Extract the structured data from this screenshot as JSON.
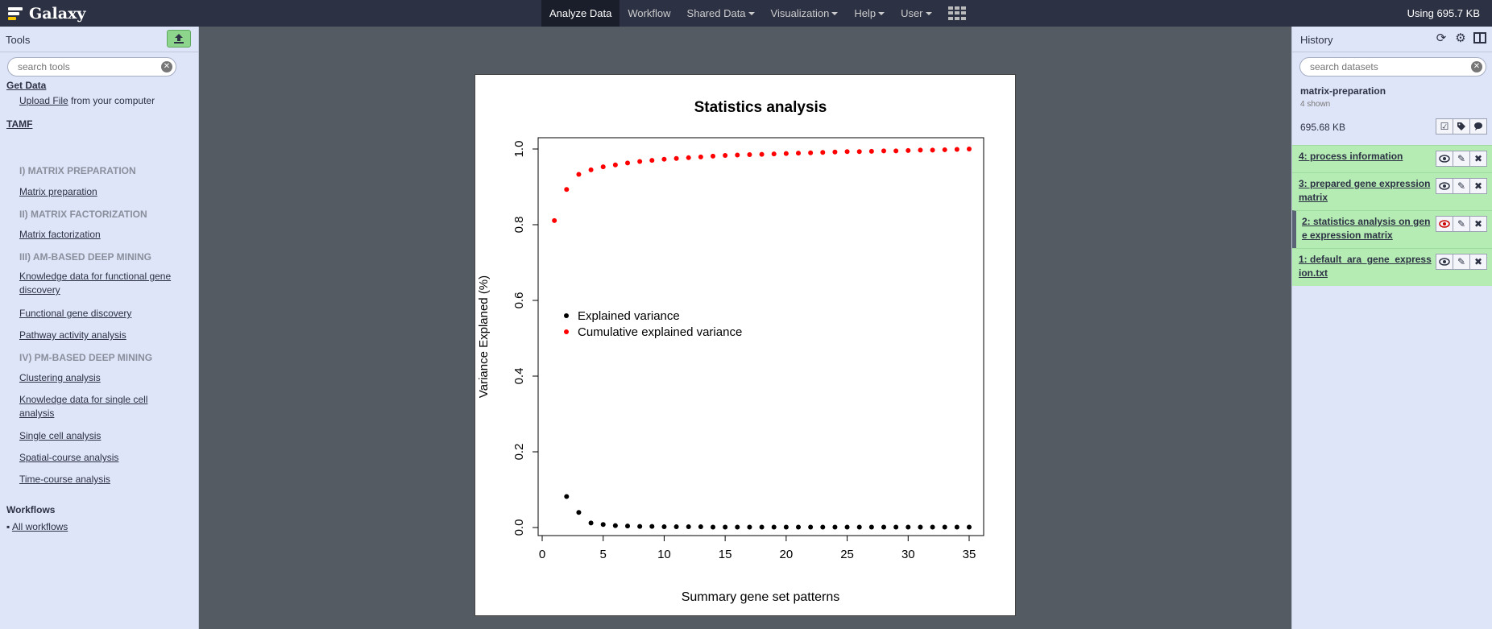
{
  "masthead": {
    "brand": "Galaxy",
    "nav": [
      {
        "label": "Analyze Data",
        "active": true,
        "caret": false
      },
      {
        "label": "Workflow",
        "active": false,
        "caret": false
      },
      {
        "label": "Shared Data",
        "active": false,
        "caret": true
      },
      {
        "label": "Visualization",
        "active": false,
        "caret": true
      },
      {
        "label": "Help",
        "active": false,
        "caret": true
      },
      {
        "label": "User",
        "active": false,
        "caret": true
      }
    ],
    "apps_icon": "grid-icon",
    "quota": "Using 695.7 KB"
  },
  "tools": {
    "title": "Tools",
    "upload_icon": "upload-icon",
    "search_placeholder": "search tools",
    "get_data": "Get Data",
    "upload_link": "Upload File",
    "upload_suffix": " from your computer",
    "tamf": "TAMF",
    "items": [
      {
        "kind": "cat",
        "label": "I) MATRIX PREPARATION"
      },
      {
        "kind": "tool",
        "label": "Matrix preparation"
      },
      {
        "kind": "cat",
        "label": "II) MATRIX FACTORIZATION"
      },
      {
        "kind": "tool",
        "label": "Matrix factorization"
      },
      {
        "kind": "cat",
        "label": "III) AM-BASED DEEP MINING"
      },
      {
        "kind": "tool",
        "label": "Knowledge data for functional gene discovery"
      },
      {
        "kind": "tool",
        "label": "Functional gene discovery"
      },
      {
        "kind": "tool",
        "label": "Pathway activity analysis"
      },
      {
        "kind": "cat",
        "label": "IV) PM-BASED DEEP MINING"
      },
      {
        "kind": "tool",
        "label": "Clustering analysis"
      },
      {
        "kind": "tool",
        "label": "Knowledge data for single cell analysis"
      },
      {
        "kind": "tool",
        "label": "Single cell analysis"
      },
      {
        "kind": "tool",
        "label": "Spatial-course analysis"
      },
      {
        "kind": "tool",
        "label": "Time-course analysis"
      }
    ],
    "workflows_title": "Workflows",
    "all_workflows": "All workflows"
  },
  "history": {
    "title": "History",
    "icons": [
      "refresh-icon",
      "gear-icon",
      "columns-icon"
    ],
    "search_placeholder": "search datasets",
    "name": "matrix-preparation",
    "shown": "4 shown",
    "size": "695.68 KB",
    "datasets": [
      {
        "title": "4: process information",
        "selected": false,
        "eye_red": false
      },
      {
        "title": "3: prepared gene expression matrix",
        "selected": false,
        "eye_red": false
      },
      {
        "title": "2: statistics analysis on gene expression matrix",
        "selected": true,
        "eye_red": true
      },
      {
        "title": "1: default_ara_gene_expression.txt",
        "selected": false,
        "eye_red": false
      }
    ]
  },
  "chart_data": {
    "type": "scatter",
    "title": "Statistics analysis",
    "xlabel": "Summary gene set patterns",
    "ylabel": "Variance Explaned (%)",
    "xlim": [
      0,
      35
    ],
    "ylim": [
      0,
      1.0
    ],
    "xticks": [
      0,
      5,
      10,
      15,
      20,
      25,
      30,
      35
    ],
    "yticks": [
      0.0,
      0.2,
      0.4,
      0.6,
      0.8,
      1.0
    ],
    "ytick_labels": [
      "0.0",
      "0.2",
      "0.4",
      "0.6",
      "0.8",
      "1.0"
    ],
    "legend_placement": "left-middle",
    "grid": false,
    "series": [
      {
        "name": "Explained variance",
        "color": "#000000",
        "x": [
          2,
          3,
          4,
          5,
          6,
          7,
          8,
          9,
          10,
          11,
          12,
          13,
          14,
          15,
          16,
          17,
          18,
          19,
          20,
          21,
          22,
          23,
          24,
          25,
          26,
          27,
          28,
          29,
          30,
          31,
          32,
          33,
          34,
          35
        ],
        "y": [
          0.082,
          0.04,
          0.012,
          0.008,
          0.005,
          0.004,
          0.003,
          0.003,
          0.002,
          0.002,
          0.002,
          0.002,
          0.001,
          0.001,
          0.001,
          0.001,
          0.001,
          0.001,
          0.001,
          0.001,
          0.001,
          0.001,
          0.001,
          0.001,
          0.001,
          0.001,
          0.001,
          0.001,
          0.001,
          0.001,
          0.001,
          0.001,
          0.001,
          0.001
        ]
      },
      {
        "name": "Cumulative explained variance",
        "color": "#ff0000",
        "x": [
          1,
          2,
          3,
          4,
          5,
          6,
          7,
          8,
          9,
          10,
          11,
          12,
          13,
          14,
          15,
          16,
          17,
          18,
          19,
          20,
          21,
          22,
          23,
          24,
          25,
          26,
          27,
          28,
          29,
          30,
          31,
          32,
          33,
          34,
          35
        ],
        "y": [
          0.811,
          0.893,
          0.933,
          0.945,
          0.953,
          0.958,
          0.963,
          0.967,
          0.97,
          0.973,
          0.975,
          0.977,
          0.979,
          0.981,
          0.983,
          0.984,
          0.985,
          0.986,
          0.987,
          0.988,
          0.989,
          0.99,
          0.991,
          0.992,
          0.993,
          0.993,
          0.994,
          0.995,
          0.995,
          0.996,
          0.997,
          0.997,
          0.998,
          0.999,
          1.0
        ]
      }
    ]
  }
}
